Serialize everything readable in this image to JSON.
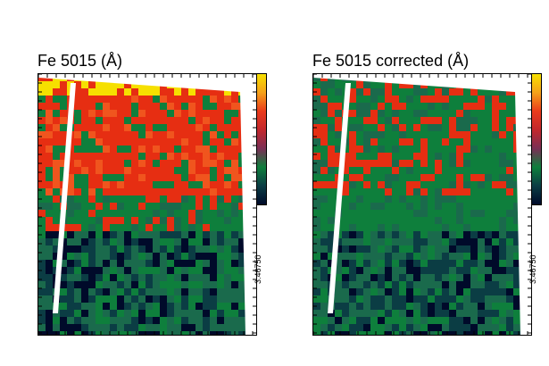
{
  "panels": [
    {
      "title": "Fe 5015 (Å)",
      "colorbar_label": "3.46750",
      "cell_colors": [
        "#e62e12",
        "#f0551e",
        "#0e7f3c",
        "#1a6a4c",
        "#0b3d44",
        "#000a2a",
        "#f6e000",
        "#ffffff"
      ],
      "strip_color": "#ffffff"
    },
    {
      "title": "Fe 5015 corrected (Å)",
      "colorbar_label": "3.46750",
      "cell_colors": [
        "#e62e12",
        "#0e7f3c",
        "#1a6a4c",
        "#0b3d44",
        "#000a2a",
        "#f6e000",
        "#ffffff"
      ],
      "strip_color": "#ffffff"
    }
  ],
  "colorbar_colors": [
    "#f6e000",
    "#f5a11a",
    "#ea3b1b",
    "#c2272d",
    "#7a2f55",
    "#0e7f3c",
    "#0b3d44",
    "#000a2a"
  ]
}
